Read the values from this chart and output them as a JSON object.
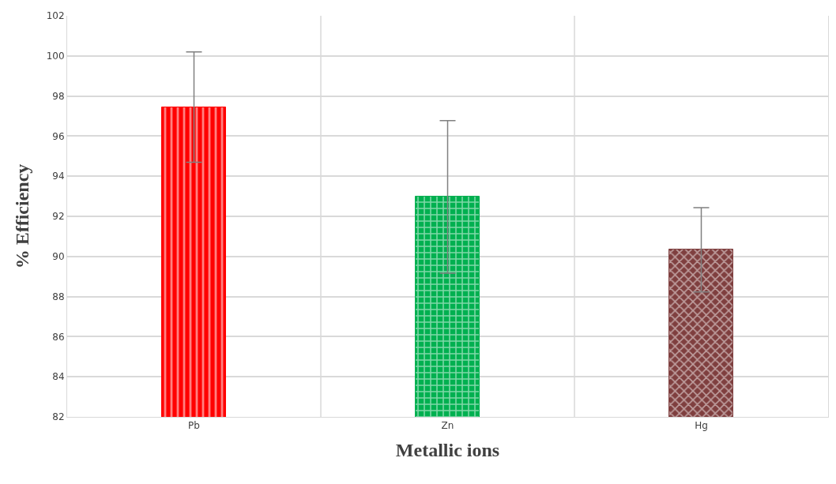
{
  "chart_data": {
    "type": "bar",
    "xlabel": "Metallic ions",
    "ylabel": "% Efficiency",
    "categories": [
      "Pb",
      "Zn",
      "Hg"
    ],
    "values": [
      97.45,
      92.97,
      90.33
    ],
    "errors": [
      2.75,
      3.8,
      2.1
    ],
    "colors": [
      "#ff0000",
      "#00b050",
      "#7f3f3f"
    ],
    "ylim": [
      82,
      102
    ],
    "yticks": [
      82,
      84,
      86,
      88,
      90,
      92,
      94,
      96,
      98,
      100,
      102
    ],
    "grid": true
  }
}
